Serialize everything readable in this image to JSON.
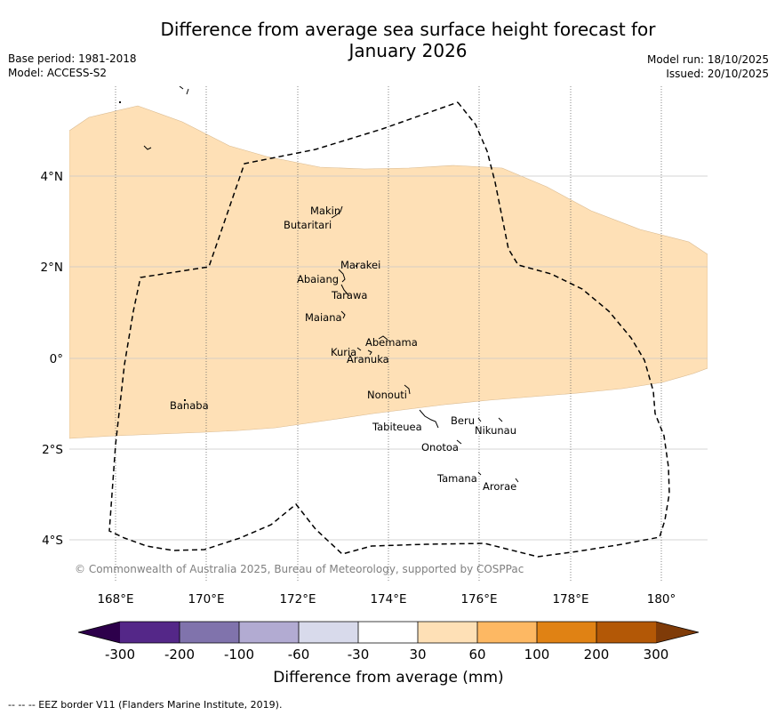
{
  "title": {
    "line1": "Difference from average sea surface height forecast for",
    "line2": "January 2026"
  },
  "meta": {
    "base_period": "Base period: 1981-2018",
    "model": "Model: ACCESS-S2",
    "model_run": "Model run: 18/10/2025",
    "issued": "Issued: 20/10/2025"
  },
  "map": {
    "lon_ticks": [
      "168°E",
      "170°E",
      "172°E",
      "174°E",
      "176°E",
      "178°E",
      "180°"
    ],
    "lat_ticks": [
      "4°N",
      "2°N",
      "0°",
      "2°S",
      "4°S"
    ],
    "copyright": "© Commonwealth of Australia 2025, Bureau of Meteorology, supported by COSPPac",
    "places": [
      "Makin",
      "Butaritari",
      "Marakei",
      "Abaiang",
      "Tarawa",
      "Maiana",
      "Abemama",
      "Kuria",
      "Aranuka",
      "Nonouti",
      "Banaba",
      "Tabiteuea",
      "Beru",
      "Nikunau",
      "Onotoa",
      "Tamana",
      "Arorae"
    ],
    "shaded_category": "30 to 60 mm",
    "shade_color": "#fee0b6"
  },
  "colorbar": {
    "labels": [
      "-300",
      "-200",
      "-100",
      "-60",
      "-30",
      "30",
      "60",
      "100",
      "200",
      "300"
    ],
    "colors": [
      "#2d004b",
      "#542788",
      "#8073ac",
      "#b2abd2",
      "#d8daeb",
      "#ffffff",
      "#fee0b6",
      "#fdb863",
      "#e08214",
      "#b35806",
      "#7f3b08"
    ],
    "label": "Difference from average (mm)"
  },
  "footnote": "--  --  -- EEZ border V11 (Flanders Marine Institute, 2019)."
}
